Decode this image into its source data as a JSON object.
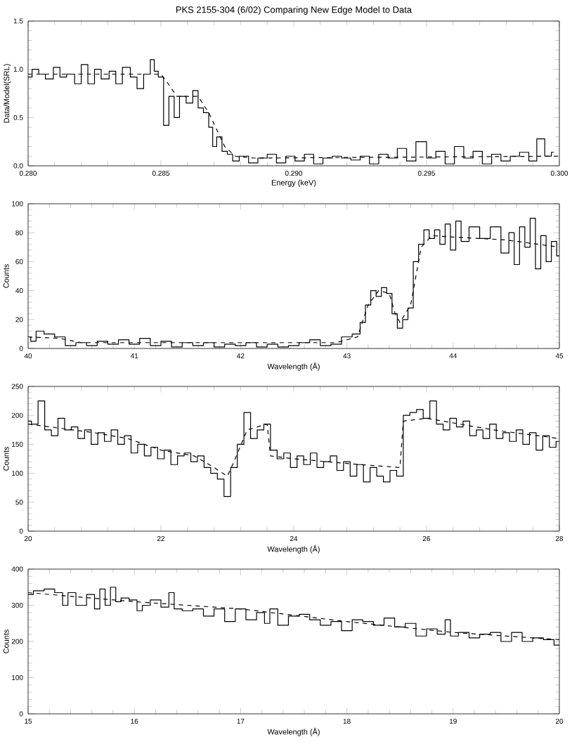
{
  "chart_data": [
    {
      "type": "step",
      "title": "PKS 2155-304 (6/02) Comparing New Edge Model to Data",
      "xlabel": "Energy (keV)",
      "ylabel": "Data/Model(SRL)",
      "xlim": [
        0.28,
        0.3
      ],
      "ylim": [
        0,
        1.5
      ],
      "xticks": [
        {
          "value": 0.28,
          "label": "0.280"
        },
        {
          "value": 0.285,
          "label": "0.285"
        },
        {
          "value": 0.29,
          "label": "0.290"
        },
        {
          "value": 0.295,
          "label": "0.295"
        },
        {
          "value": 0.3,
          "label": "0.300"
        }
      ],
      "yticks": [
        {
          "value": 0,
          "label": "0.0"
        },
        {
          "value": 0.5,
          "label": "0.5"
        },
        {
          "value": 1,
          "label": "1.0"
        },
        {
          "value": 1.5,
          "label": "1.5"
        }
      ],
      "series": [
        {
          "type": "step",
          "color": "#000000",
          "line_style": "solid",
          "x": [
            0.28,
            0.2803,
            0.2805,
            0.2808,
            0.2811,
            0.2813,
            0.2816,
            0.2819,
            0.2821,
            0.2824,
            0.2826,
            0.2829,
            0.2832,
            0.2834,
            0.2837,
            0.284,
            0.2842,
            0.2845,
            0.2847,
            0.2848,
            0.285,
            0.2852,
            0.2854,
            0.2856,
            0.2858,
            0.2861,
            0.2863,
            0.2865,
            0.2867,
            0.2869,
            0.287,
            0.2872,
            0.2874,
            0.2876,
            0.2878,
            0.2881,
            0.2885,
            0.2888,
            0.2892,
            0.2895,
            0.2899,
            0.2902,
            0.2906,
            0.2909,
            0.2913,
            0.2916,
            0.292,
            0.2923,
            0.2927,
            0.293,
            0.2934,
            0.2937,
            0.2941,
            0.2944,
            0.2948,
            0.2952,
            0.2955,
            0.2959,
            0.2962,
            0.2966,
            0.2969,
            0.2973,
            0.2976,
            0.298,
            0.2983,
            0.2987,
            0.299,
            0.2993,
            0.2996,
            0.2998
          ],
          "values": [
            0.92,
            1.0,
            0.95,
            0.9,
            1.02,
            0.92,
            0.95,
            0.85,
            1.05,
            0.85,
            1.0,
            0.9,
            0.98,
            0.85,
            1.02,
            0.92,
            0.8,
            0.95,
            1.1,
            0.98,
            0.92,
            0.42,
            0.72,
            0.5,
            0.72,
            0.65,
            0.78,
            0.6,
            0.55,
            0.4,
            0.2,
            0.3,
            0.15,
            0.12,
            0.05,
            0.1,
            0.03,
            0.08,
            0.12,
            0.03,
            0.1,
            0.05,
            0.12,
            0.02,
            0.08,
            0.1,
            0.08,
            0.06,
            0.1,
            0.02,
            0.12,
            0.08,
            0.18,
            0.05,
            0.25,
            0.08,
            0.15,
            0.02,
            0.2,
            0.08,
            0.15,
            0.02,
            0.12,
            0.05,
            0.1,
            0.14,
            0.05,
            0.28,
            0.1,
            0.14
          ]
        },
        {
          "type": "line",
          "color": "#000000",
          "line_style": "dashed",
          "x": [
            0.28,
            0.285,
            0.2852,
            0.2856,
            0.2864,
            0.2868,
            0.2874,
            0.2878,
            0.2885,
            0.3
          ],
          "values": [
            0.95,
            0.95,
            0.88,
            0.72,
            0.72,
            0.55,
            0.2,
            0.1,
            0.08,
            0.1
          ]
        }
      ]
    },
    {
      "type": "step",
      "xlabel": "Wavelength (Å)",
      "ylabel": "Counts",
      "xlim": [
        40,
        45
      ],
      "ylim": [
        0,
        100
      ],
      "xticks": [
        40,
        41,
        42,
        43,
        44,
        45
      ],
      "yticks": [
        0,
        20,
        40,
        60,
        80,
        100
      ],
      "series": [
        {
          "type": "step",
          "color": "#000000",
          "line_style": "solid",
          "x": [
            40.0,
            40.05,
            40.1,
            40.2,
            40.3,
            40.4,
            40.5,
            40.6,
            40.7,
            40.8,
            40.9,
            41.0,
            41.1,
            41.2,
            41.3,
            41.4,
            41.5,
            41.6,
            41.7,
            41.8,
            41.9,
            42.0,
            42.1,
            42.2,
            42.3,
            42.4,
            42.5,
            42.6,
            42.7,
            42.8,
            42.9,
            43.0,
            43.1,
            43.15,
            43.2,
            43.25,
            43.3,
            43.35,
            43.4,
            43.45,
            43.5,
            43.55,
            43.6,
            43.65,
            43.7,
            43.75,
            43.8,
            43.85,
            43.9,
            43.95,
            44.0,
            44.05,
            44.1,
            44.2,
            44.3,
            44.4,
            44.5,
            44.55,
            44.6,
            44.65,
            44.7,
            44.75,
            44.8,
            44.85,
            44.9,
            44.95,
            45.0
          ],
          "values": [
            8,
            5,
            12,
            10,
            8,
            2,
            4,
            2,
            5,
            3,
            6,
            3,
            7,
            2,
            5,
            1,
            4,
            2,
            4,
            1,
            3,
            2,
            4,
            1,
            3,
            1,
            2,
            4,
            6,
            2,
            3,
            8,
            10,
            18,
            30,
            40,
            36,
            42,
            38,
            24,
            14,
            20,
            28,
            60,
            72,
            82,
            76,
            82,
            72,
            86,
            68,
            88,
            74,
            84,
            76,
            84,
            66,
            80,
            58,
            84,
            70,
            90,
            55,
            78,
            60,
            74,
            64
          ]
        },
        {
          "type": "line",
          "color": "#000000",
          "line_style": "dashed",
          "x": [
            40,
            40.3,
            40.5,
            42.9,
            43.1,
            43.2,
            43.3,
            43.4,
            43.45,
            43.5,
            43.6,
            43.7,
            43.8,
            44.0,
            44.5,
            45.0
          ],
          "values": [
            8,
            7,
            4,
            4,
            8,
            30,
            40,
            38,
            25,
            18,
            30,
            70,
            78,
            77,
            75,
            70
          ]
        }
      ]
    },
    {
      "type": "step",
      "xlabel": "Wavelength (Å)",
      "ylabel": "Counts",
      "xlim": [
        20,
        28
      ],
      "ylim": [
        0,
        250
      ],
      "xticks": [
        20,
        22,
        24,
        26,
        28
      ],
      "yticks": [
        0,
        50,
        100,
        150,
        200,
        250
      ],
      "series": [
        {
          "type": "step",
          "color": "#000000",
          "line_style": "solid",
          "x": [
            20.0,
            20.1,
            20.2,
            20.3,
            20.4,
            20.5,
            20.6,
            20.7,
            20.8,
            20.9,
            21.0,
            21.1,
            21.2,
            21.3,
            21.4,
            21.5,
            21.6,
            21.7,
            21.8,
            21.9,
            22.0,
            22.1,
            22.2,
            22.3,
            22.4,
            22.5,
            22.6,
            22.7,
            22.8,
            22.9,
            23.0,
            23.1,
            23.2,
            23.3,
            23.4,
            23.5,
            23.6,
            23.7,
            23.8,
            23.9,
            24.0,
            24.1,
            24.2,
            24.3,
            24.4,
            24.5,
            24.6,
            24.7,
            24.8,
            24.9,
            25.0,
            25.1,
            25.2,
            25.3,
            25.4,
            25.5,
            25.6,
            25.7,
            25.8,
            25.9,
            26.0,
            26.1,
            26.2,
            26.3,
            26.4,
            26.5,
            26.6,
            26.7,
            26.8,
            26.9,
            27.0,
            27.1,
            27.2,
            27.3,
            27.4,
            27.5,
            27.6,
            27.7,
            27.8,
            27.9,
            28.0
          ],
          "values": [
            190,
            185,
            225,
            175,
            165,
            195,
            175,
            180,
            160,
            175,
            150,
            170,
            155,
            175,
            150,
            165,
            135,
            150,
            130,
            145,
            125,
            140,
            115,
            130,
            135,
            120,
            130,
            110,
            100,
            90,
            60,
            110,
            150,
            205,
            160,
            175,
            185,
            140,
            125,
            135,
            110,
            130,
            115,
            135,
            110,
            120,
            130,
            105,
            120,
            95,
            115,
            85,
            110,
            95,
            85,
            105,
            95,
            200,
            205,
            210,
            195,
            225,
            185,
            175,
            195,
            180,
            190,
            165,
            175,
            160,
            185,
            160,
            170,
            155,
            175,
            150,
            170,
            140,
            165,
            145,
            155
          ]
        },
        {
          "type": "line",
          "color": "#000000",
          "line_style": "dashed",
          "x": [
            20,
            21,
            21.5,
            22,
            22.5,
            22.8,
            23.0,
            23.1,
            23.3,
            23.6,
            23.65,
            24,
            25,
            25.6,
            25.65,
            26,
            27,
            28
          ],
          "values": [
            185,
            170,
            160,
            140,
            130,
            110,
            95,
            120,
            175,
            185,
            130,
            125,
            115,
            110,
            190,
            195,
            175,
            160
          ]
        }
      ]
    },
    {
      "type": "step",
      "xlabel": "Wavelength (Å)",
      "ylabel": "Counts",
      "xlim": [
        15,
        20
      ],
      "ylim": [
        0,
        400
      ],
      "xticks": [
        15,
        16,
        17,
        18,
        19,
        20
      ],
      "yticks": [
        0,
        100,
        200,
        300,
        400
      ],
      "series": [
        {
          "type": "step",
          "color": "#000000",
          "line_style": "solid",
          "x": [
            15.0,
            15.1,
            15.2,
            15.3,
            15.35,
            15.4,
            15.5,
            15.6,
            15.65,
            15.7,
            15.75,
            15.8,
            15.85,
            15.9,
            16.0,
            16.05,
            16.1,
            16.2,
            16.3,
            16.35,
            16.4,
            16.5,
            16.6,
            16.7,
            16.8,
            16.9,
            17.0,
            17.1,
            17.2,
            17.25,
            17.3,
            17.4,
            17.5,
            17.6,
            17.7,
            17.8,
            17.9,
            18.0,
            18.1,
            18.2,
            18.3,
            18.4,
            18.5,
            18.6,
            18.7,
            18.8,
            18.9,
            18.95,
            19.0,
            19.1,
            19.2,
            19.3,
            19.4,
            19.5,
            19.6,
            19.7,
            19.8,
            19.9,
            20.0
          ],
          "values": [
            330,
            340,
            345,
            335,
            300,
            335,
            300,
            330,
            290,
            345,
            300,
            350,
            310,
            320,
            315,
            285,
            300,
            315,
            295,
            335,
            290,
            285,
            290,
            270,
            290,
            255,
            290,
            260,
            280,
            250,
            290,
            245,
            270,
            275,
            260,
            245,
            255,
            230,
            260,
            255,
            245,
            265,
            240,
            250,
            215,
            235,
            220,
            260,
            215,
            225,
            210,
            220,
            225,
            200,
            225,
            200,
            210,
            205,
            190
          ]
        },
        {
          "type": "line",
          "color": "#000000",
          "line_style": "dashed",
          "x": [
            15,
            16,
            17,
            18,
            19,
            20
          ],
          "values": [
            335,
            310,
            290,
            255,
            225,
            205
          ]
        }
      ]
    }
  ]
}
